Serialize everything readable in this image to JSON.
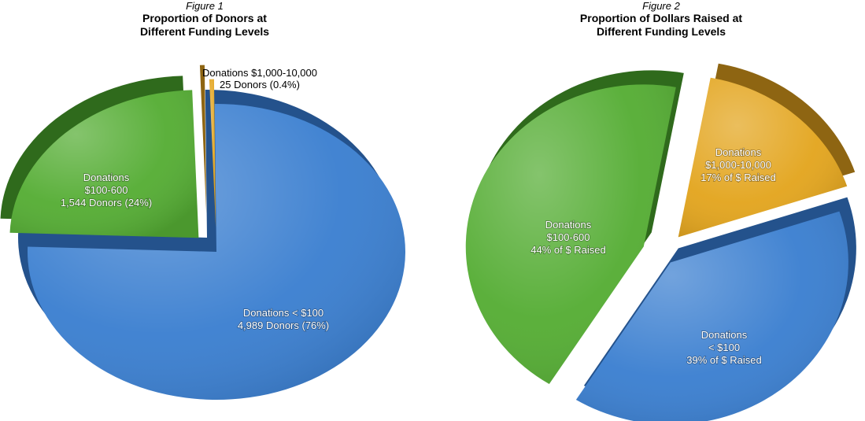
{
  "figures": [
    {
      "label": "Figure 1",
      "title_line1": "Proportion of Donors at",
      "title_line2": "Different Funding Levels"
    },
    {
      "label": "Figure 2",
      "title_line1": "Proportion of Dollars Raised at",
      "title_line2": "Different Funding Levels"
    }
  ],
  "colors": {
    "blue": "#3b7fd0",
    "blue_side": "#24528c",
    "green": "#55ad34",
    "green_side": "#2f6a1c",
    "gold": "#e3a51e",
    "gold_side": "#8e6512",
    "label_on_slice": "#ffffff",
    "label_outside": "#000000"
  },
  "chart_data": [
    {
      "type": "pie",
      "title": "Proportion of Donors at Different Funding Levels",
      "slices": [
        {
          "category": "Donations < $100",
          "donors": 4989,
          "percent": 76,
          "label_lines": [
            "Donations < $100",
            "4,989 Donors (76%)"
          ],
          "color": "blue"
        },
        {
          "category": "Donations $100-600",
          "donors": 1544,
          "percent": 24,
          "label_lines": [
            "Donations",
            "$100-600",
            "1,544 Donors (24%)"
          ],
          "color": "green"
        },
        {
          "category": "Donations $1,000-10,000",
          "donors": 25,
          "percent": 0.4,
          "label_lines": [
            "Donations $1,000-10,000",
            "25 Donors (0.4%)"
          ],
          "color": "gold"
        }
      ]
    },
    {
      "type": "pie",
      "title": "Proportion of Dollars Raised at Different Funding Levels",
      "slices": [
        {
          "category": "Donations < $100",
          "percent": 39,
          "label_lines": [
            "Donations",
            "< $100",
            "39% of $ Raised"
          ],
          "color": "blue"
        },
        {
          "category": "Donations $100-600",
          "percent": 44,
          "label_lines": [
            "Donations",
            "$100-600",
            "44% of $ Raised"
          ],
          "color": "green"
        },
        {
          "category": "Donations $1,000-10,000",
          "percent": 17,
          "label_lines": [
            "Donations",
            "$1,000-10,000",
            "17% of $ Raised"
          ],
          "color": "gold"
        }
      ]
    }
  ]
}
